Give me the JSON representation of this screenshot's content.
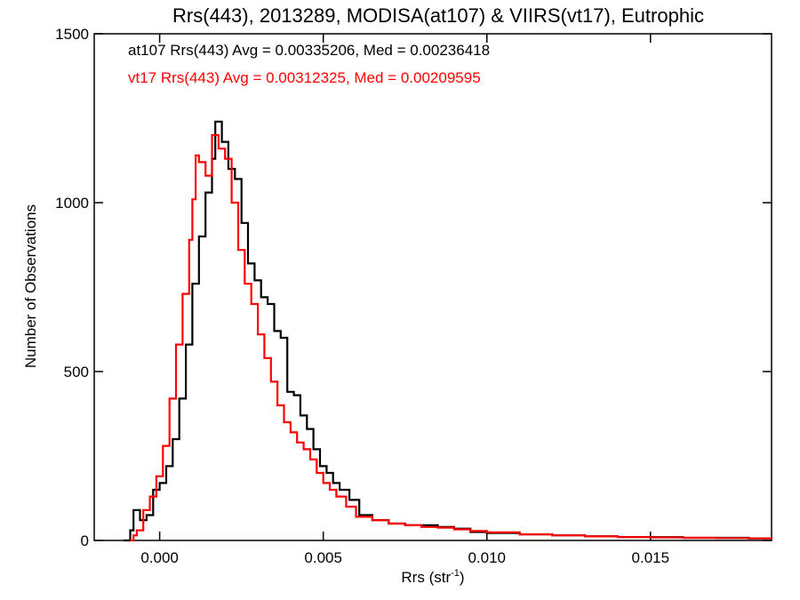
{
  "chart_data": {
    "type": "histogram",
    "title": "Rrs(443), 2013289, MODISA(at107) & VIIRS(vt17), Eutrophic",
    "xlabel": "Rrs (str",
    "xlabel_sup": "-1",
    "xlabel_close": ")",
    "ylabel": "Number of Observations",
    "xlim": [
      -0.002,
      0.0187
    ],
    "ylim": [
      0,
      1500
    ],
    "xticks": [
      0.0,
      0.005,
      0.01,
      0.015
    ],
    "xtick_labels": [
      "0.000",
      "0.005",
      "0.010",
      "0.015"
    ],
    "yticks": [
      0,
      500,
      1000,
      1500
    ],
    "ytick_labels": [
      "0",
      "500",
      "1000",
      "1500"
    ],
    "grid": false,
    "annotations": [
      {
        "text": "at107 Rrs(443) Avg = 0.00335206, Med = 0.00236418",
        "color": "#000000"
      },
      {
        "text": "vt17 Rrs(443) Avg = 0.00312325, Med = 0.00209595",
        "color": "#ff0000"
      }
    ],
    "series": [
      {
        "color": "#000000",
        "points": [
          [
            -0.0011,
            0
          ],
          [
            -0.0009,
            30
          ],
          [
            -0.0008,
            90
          ],
          [
            -0.0006,
            60
          ],
          [
            -0.0004,
            75
          ],
          [
            -0.0002,
            150
          ],
          [
            0.0,
            170
          ],
          [
            0.0002,
            220
          ],
          [
            0.0004,
            300
          ],
          [
            0.0006,
            420
          ],
          [
            0.0008,
            580
          ],
          [
            0.001,
            760
          ],
          [
            0.0012,
            900
          ],
          [
            0.0014,
            1030
          ],
          [
            0.0016,
            1130
          ],
          [
            0.0017,
            1240
          ],
          [
            0.0019,
            1180
          ],
          [
            0.0021,
            1100
          ],
          [
            0.0023,
            1070
          ],
          [
            0.0025,
            940
          ],
          [
            0.0027,
            820
          ],
          [
            0.0029,
            770
          ],
          [
            0.0031,
            720
          ],
          [
            0.0033,
            700
          ],
          [
            0.0035,
            620
          ],
          [
            0.0037,
            600
          ],
          [
            0.0039,
            440
          ],
          [
            0.0041,
            430
          ],
          [
            0.0043,
            370
          ],
          [
            0.0045,
            330
          ],
          [
            0.0047,
            270
          ],
          [
            0.0049,
            220
          ],
          [
            0.0051,
            200
          ],
          [
            0.0053,
            170
          ],
          [
            0.0055,
            150
          ],
          [
            0.0058,
            120
          ],
          [
            0.0061,
            75
          ],
          [
            0.0065,
            60
          ],
          [
            0.007,
            50
          ],
          [
            0.0075,
            45
          ],
          [
            0.008,
            45
          ],
          [
            0.0085,
            40
          ],
          [
            0.009,
            35
          ],
          [
            0.0095,
            25
          ],
          [
            0.01,
            22
          ],
          [
            0.011,
            18
          ],
          [
            0.012,
            15
          ],
          [
            0.013,
            12
          ],
          [
            0.014,
            10
          ],
          [
            0.015,
            10
          ],
          [
            0.016,
            8
          ],
          [
            0.017,
            8
          ],
          [
            0.018,
            6
          ],
          [
            0.0187,
            5
          ]
        ]
      },
      {
        "color": "#ff0000",
        "points": [
          [
            -0.0009,
            0
          ],
          [
            -0.0008,
            15
          ],
          [
            -0.0007,
            30
          ],
          [
            -0.0005,
            90
          ],
          [
            -0.0003,
            130
          ],
          [
            -0.0001,
            190
          ],
          [
            0.0001,
            280
          ],
          [
            0.0003,
            420
          ],
          [
            0.0005,
            580
          ],
          [
            0.0007,
            730
          ],
          [
            0.0009,
            890
          ],
          [
            0.001,
            1010
          ],
          [
            0.0011,
            1140
          ],
          [
            0.0012,
            1120
          ],
          [
            0.0014,
            1080
          ],
          [
            0.0016,
            1200
          ],
          [
            0.0018,
            1160
          ],
          [
            0.002,
            1130
          ],
          [
            0.0022,
            1000
          ],
          [
            0.0024,
            860
          ],
          [
            0.0026,
            760
          ],
          [
            0.0028,
            700
          ],
          [
            0.003,
            610
          ],
          [
            0.0032,
            540
          ],
          [
            0.0034,
            470
          ],
          [
            0.0036,
            400
          ],
          [
            0.0038,
            350
          ],
          [
            0.004,
            320
          ],
          [
            0.0042,
            290
          ],
          [
            0.0044,
            270
          ],
          [
            0.0046,
            240
          ],
          [
            0.0048,
            200
          ],
          [
            0.005,
            170
          ],
          [
            0.0052,
            150
          ],
          [
            0.0054,
            130
          ],
          [
            0.0057,
            100
          ],
          [
            0.006,
            70
          ],
          [
            0.0065,
            60
          ],
          [
            0.007,
            50
          ],
          [
            0.0075,
            45
          ],
          [
            0.008,
            40
          ],
          [
            0.0085,
            38
          ],
          [
            0.009,
            33
          ],
          [
            0.0095,
            28
          ],
          [
            0.01,
            24
          ],
          [
            0.011,
            18
          ],
          [
            0.012,
            15
          ],
          [
            0.013,
            12
          ],
          [
            0.014,
            10
          ],
          [
            0.015,
            9
          ],
          [
            0.016,
            8
          ],
          [
            0.017,
            7
          ],
          [
            0.018,
            6
          ],
          [
            0.0187,
            4
          ]
        ]
      }
    ]
  }
}
